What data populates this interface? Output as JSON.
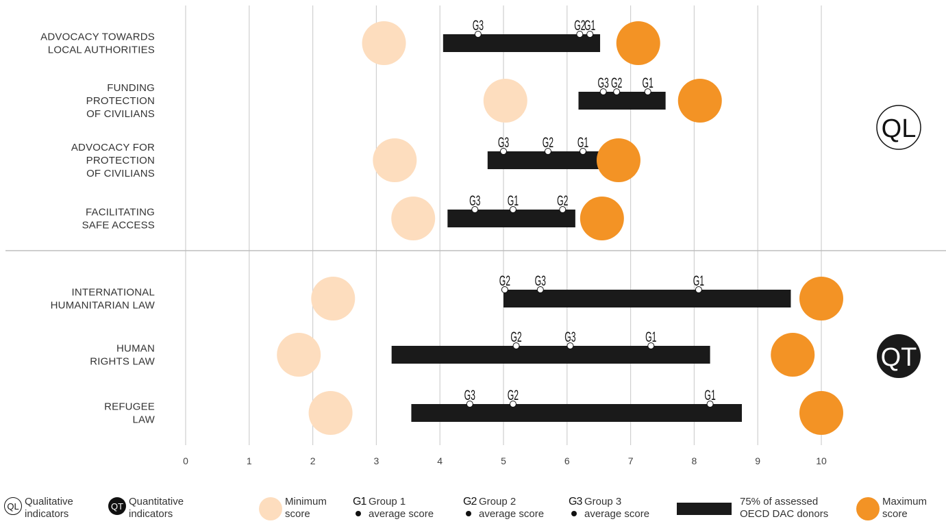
{
  "colors": {
    "min": "#FDDDBE",
    "max": "#F39325",
    "bar": "#1a1a1a",
    "grid": "#cfcfcf"
  },
  "chart_data": {
    "type": "range-dot",
    "x_ticks": [
      "0",
      "1",
      "2",
      "3",
      "4",
      "5",
      "6",
      "7",
      "8",
      "9",
      "10"
    ],
    "xlim": [
      0,
      10
    ],
    "sections": [
      {
        "name": "QL",
        "badge": "QL"
      },
      {
        "name": "QT",
        "badge": "QT"
      }
    ],
    "rows": [
      {
        "label_lines": [
          "ADVOCACY TOWARDS",
          "LOCAL AUTHORITIES"
        ],
        "section": "QL",
        "min": 3.12,
        "max": 7.12,
        "bar": [
          4.05,
          6.52
        ],
        "groups": [
          {
            "name": "G3",
            "value": 4.6
          },
          {
            "name": "G2",
            "value": 6.2
          },
          {
            "name": "G1",
            "value": 6.36
          }
        ]
      },
      {
        "label_lines": [
          "FUNDING",
          "PROTECTION",
          "OF CIVILIANS"
        ],
        "section": "QL",
        "min": 5.03,
        "max": 8.09,
        "bar": [
          6.18,
          7.55
        ],
        "groups": [
          {
            "name": "G3",
            "value": 6.57
          },
          {
            "name": "G2",
            "value": 6.78
          },
          {
            "name": "G1",
            "value": 7.27
          }
        ]
      },
      {
        "label_lines": [
          "ADVOCACY FOR",
          "PROTECTION",
          "OF CIVILIANS"
        ],
        "section": "QL",
        "min": 3.29,
        "max": 6.81,
        "bar": [
          4.75,
          6.5
        ],
        "groups": [
          {
            "name": "G3",
            "value": 5.0
          },
          {
            "name": "G2",
            "value": 5.7
          },
          {
            "name": "G1",
            "value": 6.25
          }
        ]
      },
      {
        "label_lines": [
          "FACILITATING",
          "SAFE ACCESS"
        ],
        "section": "QL",
        "min": 3.58,
        "max": 6.55,
        "bar": [
          4.12,
          6.13
        ],
        "groups": [
          {
            "name": "G3",
            "value": 4.55
          },
          {
            "name": "G1",
            "value": 5.15
          },
          {
            "name": "G2",
            "value": 5.93
          }
        ]
      },
      {
        "label_lines": [
          "INTERNATIONAL",
          "HUMANITARIAN LAW"
        ],
        "section": "QT",
        "min": 2.32,
        "max": 10.0,
        "bar": [
          5.0,
          9.52
        ],
        "groups": [
          {
            "name": "G2",
            "value": 5.02
          },
          {
            "name": "G3",
            "value": 5.58
          },
          {
            "name": "G1",
            "value": 8.07
          }
        ]
      },
      {
        "label_lines": [
          "HUMAN",
          "RIGHTS LAW"
        ],
        "section": "QT",
        "min": 1.78,
        "max": 9.55,
        "bar": [
          3.24,
          8.25
        ],
        "groups": [
          {
            "name": "G2",
            "value": 5.2
          },
          {
            "name": "G3",
            "value": 6.05
          },
          {
            "name": "G1",
            "value": 7.32
          }
        ]
      },
      {
        "label_lines": [
          "REFUGEE",
          "LAW"
        ],
        "section": "QT",
        "min": 2.28,
        "max": 10.0,
        "bar": [
          3.55,
          8.75
        ],
        "groups": [
          {
            "name": "G3",
            "value": 4.47
          },
          {
            "name": "G2",
            "value": 5.15
          },
          {
            "name": "G1",
            "value": 8.25
          }
        ]
      }
    ]
  },
  "legend": {
    "ql_badge": "QL",
    "ql_text": "Qualitative\nindicators",
    "qt_badge": "QT",
    "qt_text": "Quantitative\nindicators",
    "min_text": "Minimum\nscore",
    "g1_mark": "G1",
    "g1_text": "Group 1\naverage score",
    "g2_mark": "G2",
    "g2_text": "Group 2\naverage score",
    "g3_mark": "G3",
    "g3_text": "Group 3\naverage score",
    "bar_text": "75% of assessed\nOECD DAC donors",
    "max_text": "Maximum\nscore"
  }
}
